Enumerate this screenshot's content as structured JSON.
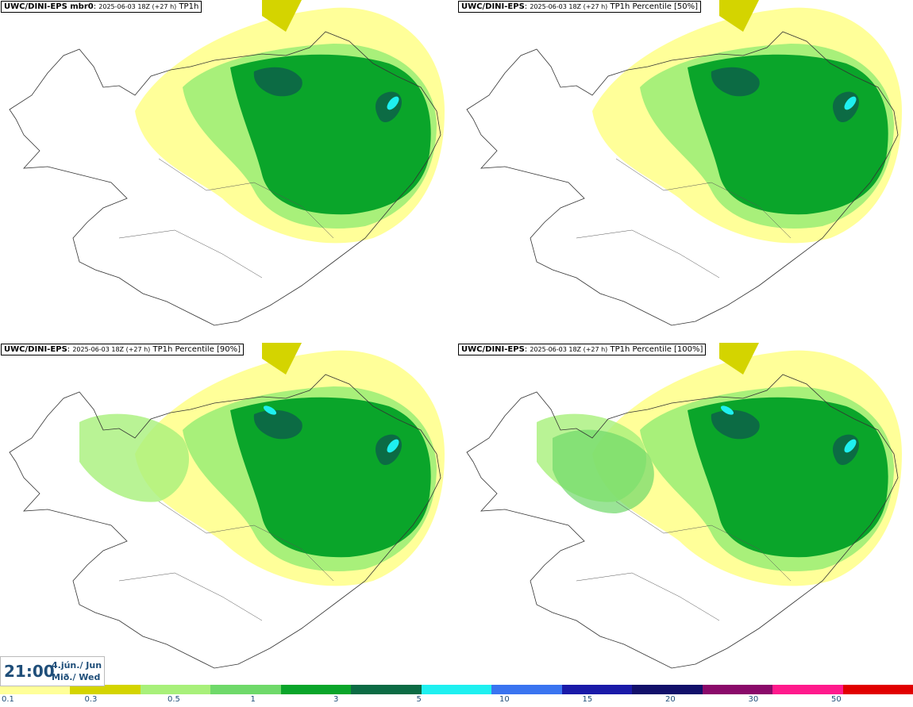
{
  "panels": [
    {
      "model": "UWC/DINI-EPS mbr0",
      "run": "2025-06-03 18Z (+27 h)",
      "field": "TP1h"
    },
    {
      "model": "UWC/DINI-EPS",
      "run": "2025-06-03 18Z (+27 h)",
      "field": "TP1h Percentile [50%]"
    },
    {
      "model": "UWC/DINI-EPS",
      "run": "2025-06-03 18Z (+27 h)",
      "field": "TP1h Percentile [90%]"
    },
    {
      "model": "UWC/DINI-EPS",
      "run": "2025-06-03 18Z (+27 h)",
      "field": "TP1h Percentile [100%]"
    }
  ],
  "valid_time": {
    "time": "21:00",
    "date": "4.jún./ Jun",
    "weekday": "Mið./ Wed"
  },
  "colorbar": {
    "colors": [
      "#ffff99",
      "#d4d400",
      "#a8f07a",
      "#6fd96a",
      "#0aa52a",
      "#0c6b44",
      "#1ef0f0",
      "#3a74f0",
      "#1a1aa8",
      "#12106a",
      "#8a0a6a",
      "#ff1a8c",
      "#e10000"
    ],
    "labels": [
      "0.1",
      "0.3",
      "0.5",
      "1",
      "3",
      "5",
      "10",
      "15",
      "20",
      "30",
      "50"
    ]
  }
}
